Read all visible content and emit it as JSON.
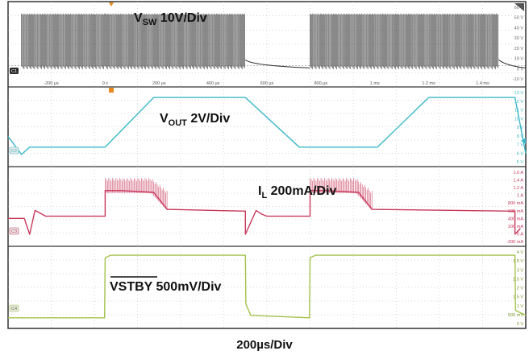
{
  "timebase": "200µs/Div",
  "colors": {
    "ch1": "#2a2a2a",
    "ch2": "#3bb8c8",
    "ch3": "#c8375a",
    "ch4": "#a3c24a",
    "frame": "#333333",
    "grid": "#b0b0b0",
    "label_bg": "#e8e8e8",
    "trigger": "#e58a1f"
  },
  "channels": [
    {
      "id": "C1",
      "label": "V",
      "sub": "SW",
      "scale": " 10V/Div",
      "overline": false
    },
    {
      "id": "C2",
      "label": "V",
      "sub": "OUT",
      "scale": " 2V/Div",
      "overline": false
    },
    {
      "id": "C3",
      "label": "I",
      "sub": "L",
      "scale": " 200mA/Div",
      "overline": false
    },
    {
      "id": "C4",
      "label": "VSTBY",
      "sub": "",
      "scale": " 500mV/Div",
      "overline": true
    }
  ],
  "time_ticks": [
    "-200 µs",
    "0 s",
    "200 µs",
    "400 µs",
    "600 µs",
    "800 µs",
    "1 ms",
    "1.2 ms",
    "1.4 ms"
  ],
  "y_ticks": {
    "C1": [
      "60 V",
      "50 V",
      "40 V",
      "30 V",
      "20 V",
      "10 V",
      "0 V",
      "-10 V"
    ],
    "C2": [
      "13 V",
      "12 V",
      "11 V",
      "10 V",
      "9 V",
      "8 V",
      "7 V",
      "6 V",
      "5 V"
    ],
    "C3": [
      "1.6 A",
      "1.4 A",
      "1.2 A",
      "1 A",
      "800 mA",
      "600 mA",
      "400 mA",
      "200 mA",
      "0 A",
      "-200 mA"
    ],
    "C4": [
      "4 V",
      "3.5 V",
      "3 V",
      "2.5 V",
      "2 V",
      "1.5 V",
      "1 V",
      "500 mV",
      "0 V"
    ]
  },
  "chart_data": {
    "type": "line",
    "x_unit": "µs",
    "xlim": [
      -360,
      1560
    ],
    "series": [
      {
        "name": "V_SW",
        "unit": "V",
        "ylim": [
          -15,
          65
        ],
        "burst_windows_us": [
          [
            -310,
            0
          ],
          [
            0,
            520
          ],
          [
            760,
            1460
          ]
        ],
        "burst_high": 54,
        "burst_low": 0,
        "idle": 0
      },
      {
        "name": "V_OUT",
        "unit": "V",
        "ylim": [
          4.7,
          13.3
        ],
        "x": [
          -360,
          -310,
          -280,
          0,
          180,
          520,
          720,
          1010,
          1200,
          1520,
          1560
        ],
        "y": [
          7.8,
          5.6,
          6.5,
          6.5,
          12.6,
          12.6,
          6.5,
          6.5,
          12.6,
          12.6,
          5.7
        ]
      },
      {
        "name": "I_L",
        "unit": "mA",
        "ylim": [
          -260,
          1680
        ],
        "x": [
          -360,
          -300,
          -280,
          -260,
          -220,
          0,
          0,
          60,
          180,
          230,
          520,
          520,
          560,
          580,
          600,
          640,
          760,
          760,
          820,
          940,
          990,
          1520,
          1520,
          1540
        ],
        "y": [
          380,
          380,
          -60,
          600,
          440,
          440,
          1150,
          1150,
          1100,
          630,
          580,
          -60,
          600,
          500,
          440,
          440,
          440,
          1150,
          1150,
          1100,
          630,
          580,
          -60,
          100
        ],
        "ripple_windows_us": [
          [
            0,
            230
          ],
          [
            760,
            990
          ]
        ],
        "ripple_peak_ma": 1500
      },
      {
        "name": "VSTBY",
        "unit": "V",
        "ylim": [
          -0.2,
          4.2
        ],
        "x": [
          -360,
          -2,
          0,
          20,
          520,
          522,
          540,
          758,
          760,
          780,
          1520,
          1522,
          1560
        ],
        "y": [
          0.15,
          0.15,
          3.8,
          3.95,
          3.95,
          1.0,
          0.3,
          0.15,
          3.8,
          3.95,
          3.95,
          0.6,
          0.3
        ]
      }
    ]
  }
}
